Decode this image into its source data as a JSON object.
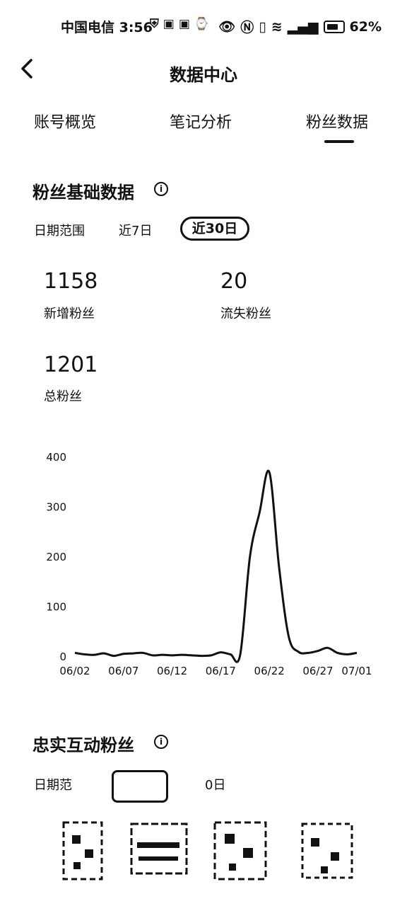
{
  "status_bar": {
    "carrier_time": "中国电信 3:56",
    "battery": "62%",
    "icons": [
      "shield-icon",
      "notification-icon",
      "notification-icon",
      "clock-icon",
      "eye-icon",
      "nfc-icon",
      "vibrate-icon",
      "wifi-icon",
      "signal-icon",
      "battery-icon"
    ]
  },
  "header": {
    "title": "数据中心"
  },
  "tabs": [
    {
      "label": "账号概览",
      "active": false
    },
    {
      "label": "笔记分析",
      "active": false
    },
    {
      "label": "粉丝数据",
      "active": true
    }
  ],
  "fans_basic": {
    "title": "粉丝基础数据",
    "date_label": "日期范围",
    "ranges": [
      {
        "label": "近7日",
        "selected": false
      },
      {
        "label": "近30日",
        "selected": true
      }
    ],
    "stats": [
      {
        "value": "1158",
        "label": "新增粉丝"
      },
      {
        "value": "20",
        "label": "流失粉丝"
      },
      {
        "value": "1201",
        "label": "总粉丝"
      }
    ]
  },
  "chart_data": {
    "type": "line",
    "x": [
      "06/02",
      "06/03",
      "06/04",
      "06/05",
      "06/06",
      "06/07",
      "06/08",
      "06/09",
      "06/10",
      "06/11",
      "06/12",
      "06/13",
      "06/14",
      "06/15",
      "06/16",
      "06/17",
      "06/18",
      "06/19",
      "06/20",
      "06/21",
      "06/22",
      "06/23",
      "06/24",
      "06/25",
      "06/26",
      "06/27",
      "06/28",
      "06/29",
      "06/30",
      "07/01"
    ],
    "series": [
      {
        "values": [
          8,
          5,
          4,
          7,
          2,
          6,
          7,
          8,
          3,
          4,
          3,
          4,
          3,
          2,
          3,
          9,
          5,
          4,
          200,
          290,
          370,
          180,
          40,
          10,
          8,
          12,
          18,
          8,
          5,
          8
        ]
      }
    ],
    "x_tick_labels": [
      "06/02",
      "06/07",
      "06/12",
      "06/17",
      "06/22",
      "06/27",
      "07/01"
    ],
    "y_ticks": [
      0,
      100,
      200,
      300,
      400
    ],
    "ylim": [
      0,
      400
    ],
    "grid": false,
    "line_color": "#111111"
  },
  "loyal_fans": {
    "title": "忠实互动粉丝",
    "date_label_partial": "日期范",
    "range_partial": "0日"
  }
}
